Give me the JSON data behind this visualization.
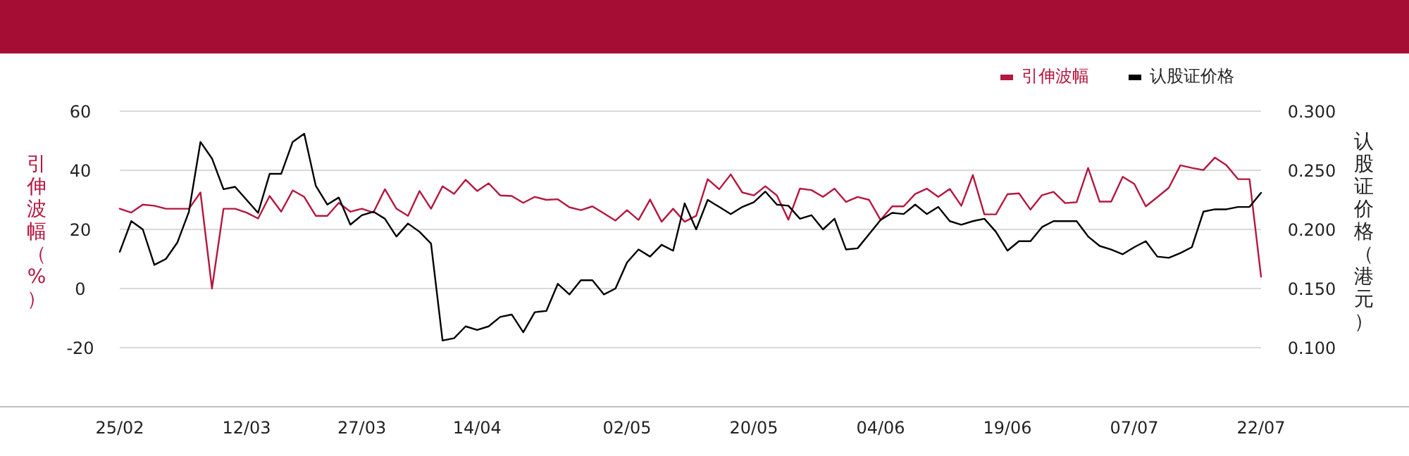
{
  "chart_data": {
    "type": "line",
    "categories": [
      "25/02",
      null,
      null,
      null,
      null,
      null,
      null,
      null,
      null,
      null,
      null,
      "12/03",
      null,
      null,
      null,
      null,
      null,
      null,
      null,
      null,
      null,
      "27/03",
      null,
      null,
      null,
      null,
      null,
      null,
      null,
      null,
      null,
      "14/04",
      null,
      null,
      null,
      null,
      null,
      null,
      null,
      null,
      null,
      null,
      null,
      null,
      "02/05",
      null,
      null,
      null,
      null,
      null,
      null,
      null,
      null,
      null,
      null,
      "20/05",
      null,
      null,
      null,
      null,
      null,
      null,
      null,
      null,
      null,
      null,
      "04/06",
      null,
      null,
      null,
      null,
      null,
      null,
      null,
      null,
      null,
      null,
      "19/06",
      null,
      null,
      null,
      null,
      null,
      null,
      null,
      null,
      null,
      null,
      "07/07",
      null,
      null,
      null,
      null,
      null,
      null,
      null,
      null,
      null,
      null,
      "22/07"
    ],
    "series": [
      {
        "name": "引伸波幅",
        "color": "#b5173f",
        "values": [
          27,
          25.7,
          28.4,
          28,
          27,
          27,
          27,
          32.5,
          0,
          27,
          27,
          25.7,
          23.7,
          31.3,
          26,
          33.2,
          31,
          24.6,
          24.6,
          29,
          26,
          27,
          25.7,
          33.6,
          27,
          24.6,
          33,
          27,
          34.6,
          32,
          36.8,
          33,
          35.6,
          31.5,
          31.3,
          29,
          31,
          30,
          30.2,
          27.5,
          26.5,
          27.8,
          25.4,
          23,
          26.5,
          23.2,
          30.1,
          22.6,
          27,
          22.6,
          24.6,
          37,
          33.6,
          38.6,
          32.5,
          31.5,
          34.6,
          31.5,
          23.3,
          33.8,
          33.3,
          31,
          33.8,
          29.3,
          31,
          30,
          23.2,
          27.8,
          27.8,
          32,
          33.8,
          31,
          33.7,
          28,
          38.4,
          25.1,
          25.1,
          31.9,
          32.2,
          26.7,
          31.6,
          32.7,
          28.9,
          29.2,
          40.8,
          29.4,
          29.4,
          37.8,
          35.4,
          27.8,
          30.9,
          34.1,
          41.7,
          40.8,
          40.1,
          44.3,
          41.7,
          37,
          37,
          4
        ]
      },
      {
        "name": "认股证价格",
        "color": "#000000",
        "axis": "y2",
        "values": [
          0.181,
          0.207,
          0.2,
          0.17,
          0.175,
          0.189,
          0.215,
          0.274,
          0.26,
          0.234,
          0.236,
          0.225,
          0.214,
          0.247,
          0.247,
          0.274,
          0.281,
          0.237,
          0.221,
          0.227,
          0.204,
          0.212,
          0.215,
          0.209,
          0.194,
          0.205,
          0.198,
          0.188,
          0.106,
          0.108,
          0.118,
          0.115,
          0.118,
          0.126,
          0.128,
          0.113,
          0.13,
          0.131,
          0.154,
          0.145,
          0.157,
          0.157,
          0.145,
          0.15,
          0.172,
          0.183,
          0.177,
          0.187,
          0.182,
          0.222,
          0.2,
          0.225,
          0.219,
          0.213,
          0.219,
          0.223,
          0.232,
          0.221,
          0.22,
          0.209,
          0.212,
          0.2,
          0.209,
          0.183,
          0.184,
          0.196,
          0.208,
          0.214,
          0.213,
          0.221,
          0.213,
          0.219,
          0.207,
          0.204,
          0.207,
          0.209,
          0.198,
          0.182,
          0.19,
          0.19,
          0.202,
          0.207,
          0.207,
          0.207,
          0.194,
          0.186,
          0.183,
          0.179,
          0.185,
          0.19,
          0.177,
          0.176,
          0.18,
          0.185,
          0.215,
          0.217,
          0.217,
          0.219,
          0.219,
          0.231
        ]
      }
    ],
    "ylabel": "引伸波幅（%）",
    "y2label": "认股证价格（港元）",
    "ylim": [
      -40,
      60
    ],
    "yticks": [
      -20,
      0,
      20,
      40,
      60
    ],
    "y2lim": [
      0.05,
      0.3
    ],
    "y2ticks": [
      {
        "value": 0.1,
        "label": "0.100"
      },
      {
        "value": 0.15,
        "label": "0.150"
      },
      {
        "value": 0.2,
        "label": "0.200"
      },
      {
        "value": 0.25,
        "label": "0.250"
      },
      {
        "value": 0.3,
        "label": "0.300"
      }
    ],
    "grid": "y",
    "legend": "top right"
  }
}
